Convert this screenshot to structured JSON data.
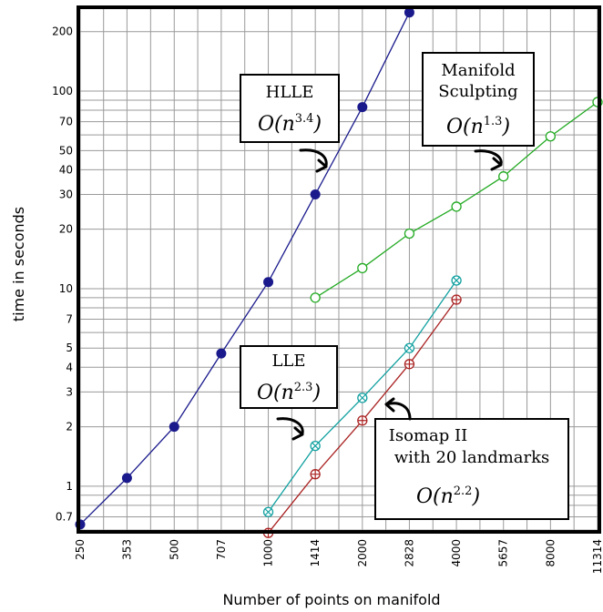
{
  "chart_data": {
    "type": "line",
    "xlabel": "Number of points on manifold",
    "ylabel": "time in seconds",
    "x_scale": "log",
    "y_scale": "log",
    "xlim": [
      250,
      11314
    ],
    "ylim": [
      0.6,
      260
    ],
    "x_ticks": [
      250,
      353,
      500,
      707,
      1000,
      1414,
      2000,
      2828,
      4000,
      5657,
      8000,
      11314
    ],
    "y_ticks": [
      0.7,
      1,
      2,
      3,
      4,
      5,
      7,
      10,
      20,
      30,
      40,
      50,
      70,
      100,
      200
    ],
    "grid": true,
    "series": [
      {
        "name": "HLLE",
        "color": "#1a1a8c",
        "marker": "filled-circle",
        "points": [
          [
            250,
            0.64
          ],
          [
            353,
            1.1
          ],
          [
            500,
            2.0
          ],
          [
            707,
            4.7
          ],
          [
            1000,
            10.8
          ],
          [
            1414,
            30
          ],
          [
            2000,
            83
          ],
          [
            2828,
            250
          ]
        ]
      },
      {
        "name": "Manifold Sculpting",
        "color": "#22aa22",
        "marker": "open-circle",
        "points": [
          [
            1414,
            9.0
          ],
          [
            2000,
            12.7
          ],
          [
            2828,
            19
          ],
          [
            4000,
            26
          ],
          [
            5657,
            37
          ],
          [
            8000,
            59
          ],
          [
            11314,
            88
          ]
        ]
      },
      {
        "name": "LLE",
        "color": "#11a0a0",
        "marker": "crossed-circle",
        "points": [
          [
            1000,
            0.74
          ],
          [
            1414,
            1.6
          ],
          [
            2000,
            2.8
          ],
          [
            2828,
            5.0
          ],
          [
            4000,
            11
          ]
        ]
      },
      {
        "name": "Isomap II with 20 landmarks",
        "color": "#aa2222",
        "marker": "plus-circle",
        "points": [
          [
            1000,
            0.58
          ],
          [
            1414,
            1.15
          ],
          [
            2000,
            2.15
          ],
          [
            2828,
            4.15
          ],
          [
            4000,
            8.8
          ]
        ]
      }
    ],
    "annotations": [
      {
        "id": "hlle",
        "lines": [
          "HLLE"
        ],
        "complexity_base": "O(n",
        "complexity_exp": "3.4",
        "complexity_end": ")"
      },
      {
        "id": "ms",
        "lines": [
          "Manifold",
          "Sculpting"
        ],
        "complexity_base": "O(n",
        "complexity_exp": "1.3",
        "complexity_end": ")"
      },
      {
        "id": "lle",
        "lines": [
          "LLE"
        ],
        "complexity_base": "O(n",
        "complexity_exp": "2.3",
        "complexity_end": ")"
      },
      {
        "id": "iso",
        "lines": [
          "Isomap II",
          "with 20 landmarks"
        ],
        "complexity_base": "O(n",
        "complexity_exp": "2.2",
        "complexity_end": ")"
      }
    ]
  }
}
